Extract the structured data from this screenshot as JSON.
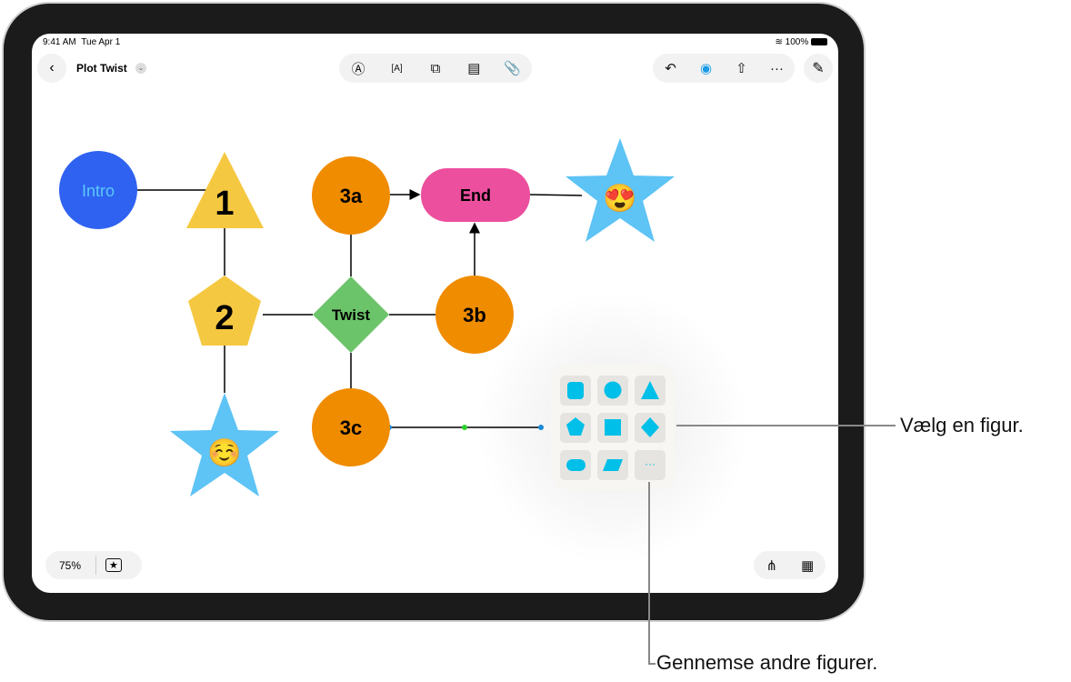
{
  "status": {
    "time": "9:41 AM",
    "date": "Tue Apr 1",
    "battery": "100%"
  },
  "header": {
    "title": "Plot Twist"
  },
  "toolbar": {
    "tools": [
      "pen-icon",
      "text-box-icon",
      "shapes-icon",
      "sticky-note-icon",
      "attachment-icon"
    ],
    "right": [
      "undo-icon",
      "collaborate-icon",
      "share-icon",
      "more-icon"
    ]
  },
  "canvas": {
    "shapes": {
      "intro": "Intro",
      "one": "1",
      "two": "2",
      "twist": "Twist",
      "a3": "3a",
      "b3": "3b",
      "c3": "3c",
      "end": "End",
      "star_top": "😍",
      "star_bottom": "☺️"
    }
  },
  "shape_picker": {
    "items": [
      "rounded-square",
      "circle",
      "triangle",
      "pentagon",
      "square",
      "diamond",
      "pill",
      "parallelogram",
      "more"
    ],
    "more_label": "···",
    "color": "#00bfe8"
  },
  "bottom": {
    "zoom": "75%"
  },
  "callouts": {
    "pick_shape": "Vælg en figur.",
    "browse": "Gennemse andre figurer."
  },
  "colors": {
    "blue": "#2f62f0",
    "yellow": "#f5c842",
    "orange": "#f08c00",
    "green": "#6cc46a",
    "pink": "#ec4f9e",
    "star": "#5ec3f5"
  }
}
